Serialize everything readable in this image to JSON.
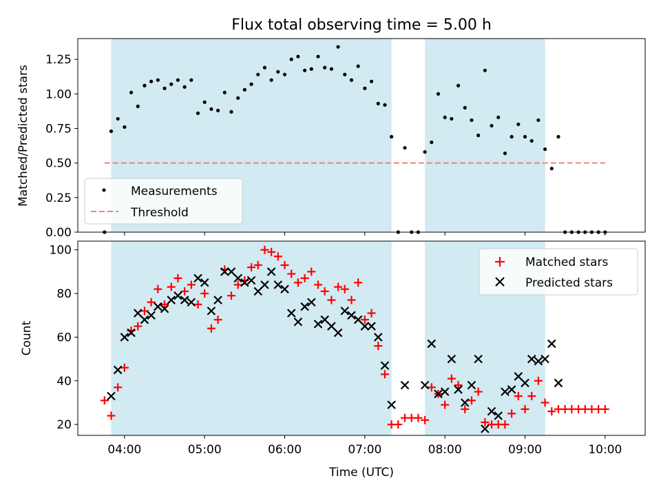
{
  "figure": {
    "title": "Flux total observing time = 5.00 h",
    "xlabel": "Time (UTC)",
    "x_ticks": [
      "04:00",
      "05:00",
      "06:00",
      "07:00",
      "08:00",
      "09:00",
      "10:00"
    ]
  },
  "chart_data": [
    {
      "type": "scatter",
      "ylabel": "Matched/Predicted stars",
      "xlim": [
        "03:25",
        "10:30"
      ],
      "ylim": [
        0,
        1.4
      ],
      "y_ticks": [
        "0.00",
        "0.25",
        "0.50",
        "0.75",
        "1.00",
        "1.25"
      ],
      "shaded_ranges": [
        [
          "03:50",
          "07:20"
        ],
        [
          "07:45",
          "09:15"
        ]
      ],
      "shade_color": "#add8e6",
      "legend_location": "lower-left",
      "series": [
        {
          "name": "Measurements",
          "marker": "dot",
          "color": "#000000",
          "x": [
            "03:45",
            "03:50",
            "03:55",
            "04:00",
            "04:05",
            "04:10",
            "04:15",
            "04:20",
            "04:25",
            "04:30",
            "04:35",
            "04:40",
            "04:45",
            "04:50",
            "04:55",
            "05:00",
            "05:05",
            "05:10",
            "05:15",
            "05:20",
            "05:25",
            "05:30",
            "05:35",
            "05:40",
            "05:45",
            "05:50",
            "05:55",
            "06:00",
            "06:05",
            "06:10",
            "06:15",
            "06:20",
            "06:25",
            "06:30",
            "06:35",
            "06:40",
            "06:45",
            "06:50",
            "06:55",
            "07:00",
            "07:05",
            "07:10",
            "07:15",
            "07:20",
            "07:25",
            "07:30",
            "07:35",
            "07:40",
            "07:45",
            "07:50",
            "07:55",
            "08:00",
            "08:05",
            "08:10",
            "08:15",
            "08:20",
            "08:25",
            "08:30",
            "08:35",
            "08:40",
            "08:45",
            "08:50",
            "08:55",
            "09:00",
            "09:05",
            "09:10",
            "09:15",
            "09:20",
            "09:25",
            "09:30",
            "09:35",
            "09:40",
            "09:45",
            "09:50",
            "09:55",
            "10:00"
          ],
          "values": [
            0.0,
            0.73,
            0.82,
            0.76,
            1.01,
            0.91,
            1.06,
            1.09,
            1.1,
            1.04,
            1.07,
            1.1,
            1.05,
            1.1,
            0.86,
            0.94,
            0.89,
            0.88,
            1.01,
            0.87,
            0.97,
            1.03,
            1.07,
            1.14,
            1.19,
            1.1,
            1.16,
            1.14,
            1.25,
            1.27,
            1.17,
            1.18,
            1.27,
            1.19,
            1.18,
            1.34,
            1.14,
            1.1,
            1.2,
            1.04,
            1.09,
            0.93,
            0.92,
            0.69,
            0.0,
            0.61,
            0.0,
            0.0,
            0.58,
            0.65,
            1.0,
            0.83,
            0.82,
            1.06,
            0.9,
            0.81,
            0.7,
            1.17,
            0.77,
            0.83,
            0.57,
            0.69,
            0.78,
            0.69,
            0.66,
            0.81,
            0.6,
            0.46,
            0.69,
            0.0,
            0.0,
            0.0,
            0.0,
            0.0,
            0.0,
            0.0
          ]
        },
        {
          "name": "Threshold",
          "marker": "dashed-line",
          "color": "#f08080",
          "x": [
            "03:45",
            "10:00"
          ],
          "values": [
            0.5,
            0.5
          ]
        }
      ]
    },
    {
      "type": "scatter",
      "ylabel": "Count",
      "xlim": [
        "03:25",
        "10:30"
      ],
      "ylim": [
        15,
        104
      ],
      "y_ticks": [
        "20",
        "40",
        "60",
        "80",
        "100"
      ],
      "shaded_ranges": [
        [
          "03:50",
          "07:20"
        ],
        [
          "07:45",
          "09:15"
        ]
      ],
      "shade_color": "#add8e6",
      "legend_location": "upper-right",
      "series": [
        {
          "name": "Matched stars",
          "marker": "plus",
          "color": "#ff0000",
          "x": [
            "03:45",
            "03:50",
            "03:55",
            "04:00",
            "04:05",
            "04:10",
            "04:15",
            "04:20",
            "04:25",
            "04:30",
            "04:35",
            "04:40",
            "04:45",
            "04:50",
            "04:55",
            "05:00",
            "05:05",
            "05:10",
            "05:15",
            "05:20",
            "05:25",
            "05:30",
            "05:35",
            "05:40",
            "05:45",
            "05:50",
            "05:55",
            "06:00",
            "06:05",
            "06:10",
            "06:15",
            "06:20",
            "06:25",
            "06:30",
            "06:35",
            "06:40",
            "06:45",
            "06:50",
            "06:55",
            "07:00",
            "07:05",
            "07:10",
            "07:15",
            "07:20",
            "07:25",
            "07:30",
            "07:35",
            "07:40",
            "07:45",
            "07:50",
            "07:55",
            "08:00",
            "08:05",
            "08:10",
            "08:15",
            "08:20",
            "08:25",
            "08:30",
            "08:35",
            "08:40",
            "08:45",
            "08:50",
            "08:55",
            "09:00",
            "09:05",
            "09:10",
            "09:15",
            "09:20",
            "09:25",
            "09:30",
            "09:35",
            "09:40",
            "09:45",
            "09:50",
            "09:55",
            "10:00"
          ],
          "values": [
            31,
            24,
            37,
            46,
            63,
            65,
            72,
            76,
            82,
            75,
            83,
            87,
            81,
            84,
            75,
            80,
            64,
            68,
            91,
            79,
            84,
            86,
            92,
            93,
            100,
            99,
            97,
            93,
            89,
            85,
            87,
            90,
            84,
            81,
            77,
            83,
            82,
            77,
            85,
            68,
            71,
            56,
            43,
            20,
            20,
            23,
            23,
            23,
            22,
            37,
            34,
            29,
            41,
            38,
            27,
            31,
            35,
            21,
            20,
            20,
            20,
            25,
            33,
            27,
            33,
            40,
            30,
            26,
            27,
            27,
            27,
            27,
            27,
            27,
            27,
            27
          ]
        },
        {
          "name": "Predicted stars",
          "marker": "x",
          "color": "#000000",
          "x": [
            "03:50",
            "03:55",
            "04:00",
            "04:05",
            "04:10",
            "04:15",
            "04:20",
            "04:25",
            "04:30",
            "04:35",
            "04:40",
            "04:45",
            "04:50",
            "04:55",
            "05:00",
            "05:05",
            "05:10",
            "05:15",
            "05:20",
            "05:25",
            "05:30",
            "05:35",
            "05:40",
            "05:45",
            "05:50",
            "05:55",
            "06:00",
            "06:05",
            "06:10",
            "06:15",
            "06:20",
            "06:25",
            "06:30",
            "06:35",
            "06:40",
            "06:45",
            "06:50",
            "06:55",
            "07:00",
            "07:05",
            "07:10",
            "07:15",
            "07:20",
            "07:30",
            "07:45",
            "07:50",
            "07:55",
            "08:00",
            "08:05",
            "08:10",
            "08:15",
            "08:20",
            "08:25",
            "08:30",
            "08:35",
            "08:40",
            "08:45",
            "08:50",
            "08:55",
            "09:00",
            "09:05",
            "09:10",
            "09:15",
            "09:20",
            "09:25"
          ],
          "values": [
            33,
            45,
            60,
            62,
            71,
            68,
            70,
            74,
            73,
            77,
            79,
            77,
            76,
            87,
            85,
            72,
            77,
            90,
            90,
            87,
            85,
            86,
            81,
            84,
            90,
            84,
            82,
            71,
            67,
            74,
            76,
            66,
            68,
            65,
            62,
            72,
            70,
            68,
            65,
            65,
            60,
            47,
            29,
            38,
            38,
            57,
            34,
            35,
            50,
            36,
            30,
            38,
            50,
            18,
            26,
            24,
            35,
            36,
            42,
            39,
            50,
            49,
            50,
            57,
            39
          ]
        }
      ]
    }
  ]
}
